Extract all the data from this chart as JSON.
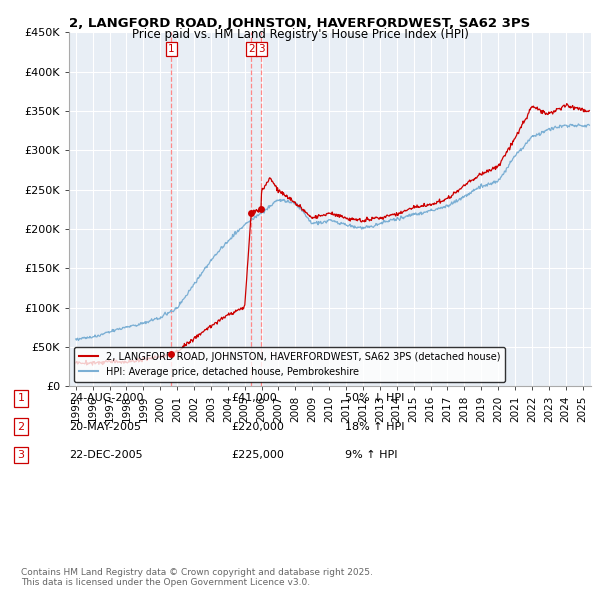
{
  "title_line1": "2, LANGFORD ROAD, JOHNSTON, HAVERFORDWEST, SA62 3PS",
  "title_line2": "Price paid vs. HM Land Registry's House Price Index (HPI)",
  "hpi_color": "#7bafd4",
  "price_color": "#cc0000",
  "vline_color": "#ff8888",
  "background_color": "#ffffff",
  "plot_bg_color": "#e8eef5",
  "grid_color": "#ffffff",
  "ylim": [
    0,
    450000
  ],
  "yticks": [
    0,
    50000,
    100000,
    150000,
    200000,
    250000,
    300000,
    350000,
    400000,
    450000
  ],
  "ytick_labels": [
    "£0",
    "£50K",
    "£100K",
    "£150K",
    "£200K",
    "£250K",
    "£300K",
    "£350K",
    "£400K",
    "£450K"
  ],
  "sales": [
    {
      "label": "1",
      "date": "24-AUG-2000",
      "price": 41000,
      "price_str": "£41,000",
      "pct": "50% ↓ HPI",
      "x_year": 2000.65
    },
    {
      "label": "2",
      "date": "20-MAY-2005",
      "price": 220000,
      "price_str": "£220,000",
      "pct": "18% ↑ HPI",
      "x_year": 2005.38
    },
    {
      "label": "3",
      "date": "22-DEC-2005",
      "price": 225000,
      "price_str": "£225,000",
      "pct": "9% ↑ HPI",
      "x_year": 2005.98
    }
  ],
  "legend_line1": "2, LANGFORD ROAD, JOHNSTON, HAVERFORDWEST, SA62 3PS (detached house)",
  "legend_line2": "HPI: Average price, detached house, Pembrokeshire",
  "footnote": "Contains HM Land Registry data © Crown copyright and database right 2025.\nThis data is licensed under the Open Government Licence v3.0.",
  "xmin": 1994.6,
  "xmax": 2025.5
}
